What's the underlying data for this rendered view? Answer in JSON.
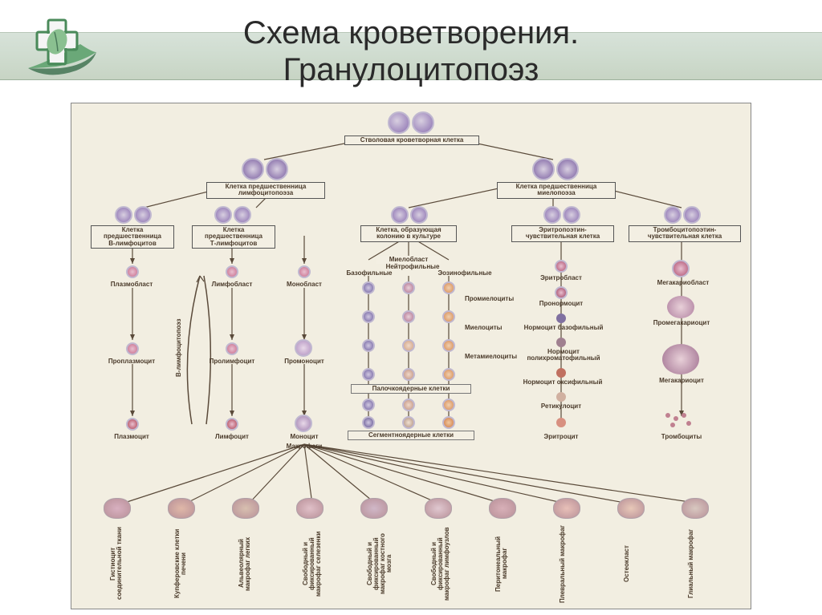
{
  "header": {
    "title_line1": "Схема кроветворения.",
    "title_line2": "Гранулоцитопоэз",
    "band_gradient": [
      "#d7e2d9",
      "#c7d4c4"
    ],
    "logo_cross_color": "#5a9a6a",
    "logo_leaf_color": "#6aa878"
  },
  "diagram": {
    "background": "#f2eee1",
    "border": "#888888",
    "line_color": "#5a4a3a",
    "text_color": "#4a3a2a",
    "cell_purple": "#8a6eb0",
    "cell_purple_dark": "#6a4e90",
    "cell_pink": "#c86a8a",
    "cell_red": "#b04050",
    "cell_orange": "#d88a50",
    "cell_salmon": "#e0a090",
    "cell_blue": "#90a0c0",
    "cell_cytoplasm": "#d8cfe0",
    "root": {
      "label": "Стволовая кроветворная клетка"
    },
    "tier2": [
      {
        "label": "Клетка предшественница\nлимфоцитопоэза"
      },
      {
        "label": "Клетка предшественница\nмиелопоэза"
      }
    ],
    "tier3": [
      {
        "label": "Клетка\nпредшественница\nВ-лимфоцитов"
      },
      {
        "label": "Клетка\nпредшественница\nТ-лимфоцитов"
      },
      {
        "label": "Клетка, образующая\nколонию в культуре"
      },
      {
        "label": "Эритропоэтин-\nчувствительная клетка"
      },
      {
        "label": "Тромбоцитопоэтин-\nчувствительная клетка"
      }
    ],
    "side_label": "В-лимфоцитопоэз",
    "columns": {
      "plasma": [
        "Плазмобласт",
        "Проплазмоцит",
        "Плазмоцит"
      ],
      "lympho": [
        "Лимфобласт",
        "Пролимфоцит",
        "Лимфоцит"
      ],
      "mono": [
        "Монобласт",
        "Промоноцит",
        "Моноцит",
        "Макрофаги"
      ],
      "myelo_header": "Миелобласт",
      "myelo_sub": [
        "Базофильные",
        "Нейтрофильные",
        "Эозинофильные"
      ],
      "myelo_stages": [
        "Промиелоциты",
        "Миелоциты",
        "Метамиелоциты",
        "Палочкоядерные клетки",
        "Сегментноядерные клетки"
      ],
      "erythro": [
        "Эритробласт",
        "Пронормоцит",
        "Нормоцит базофильный",
        "Нормоцит\nполихроматофильный",
        "Нормоцит оксифильный",
        "Ретикулоцит",
        "Эритроцит"
      ],
      "mega": [
        "Мегакариобласт",
        "Промегакариоцит",
        "Мегакариоцит",
        "Тромбоциты"
      ]
    },
    "bottom_cells": [
      "Гистиоцит\nсоединительной\nткани",
      "Купферовские\nклетки печени",
      "Альвеолярный\nмакрофаг легких",
      "Свободный и\nфиксированный\nмакрофаг\nселезенки",
      "Свободный и\nфиксированный\nмакрофаг\nкостного мозга",
      "Свободный и\nфиксированный\nмакрофаг\nлимфоузлов",
      "Перитонеальный\nмакрофаг",
      "Плевральный\nмакрофаг",
      "Остеокласт",
      "Глиальный\nмакрофаг"
    ]
  }
}
